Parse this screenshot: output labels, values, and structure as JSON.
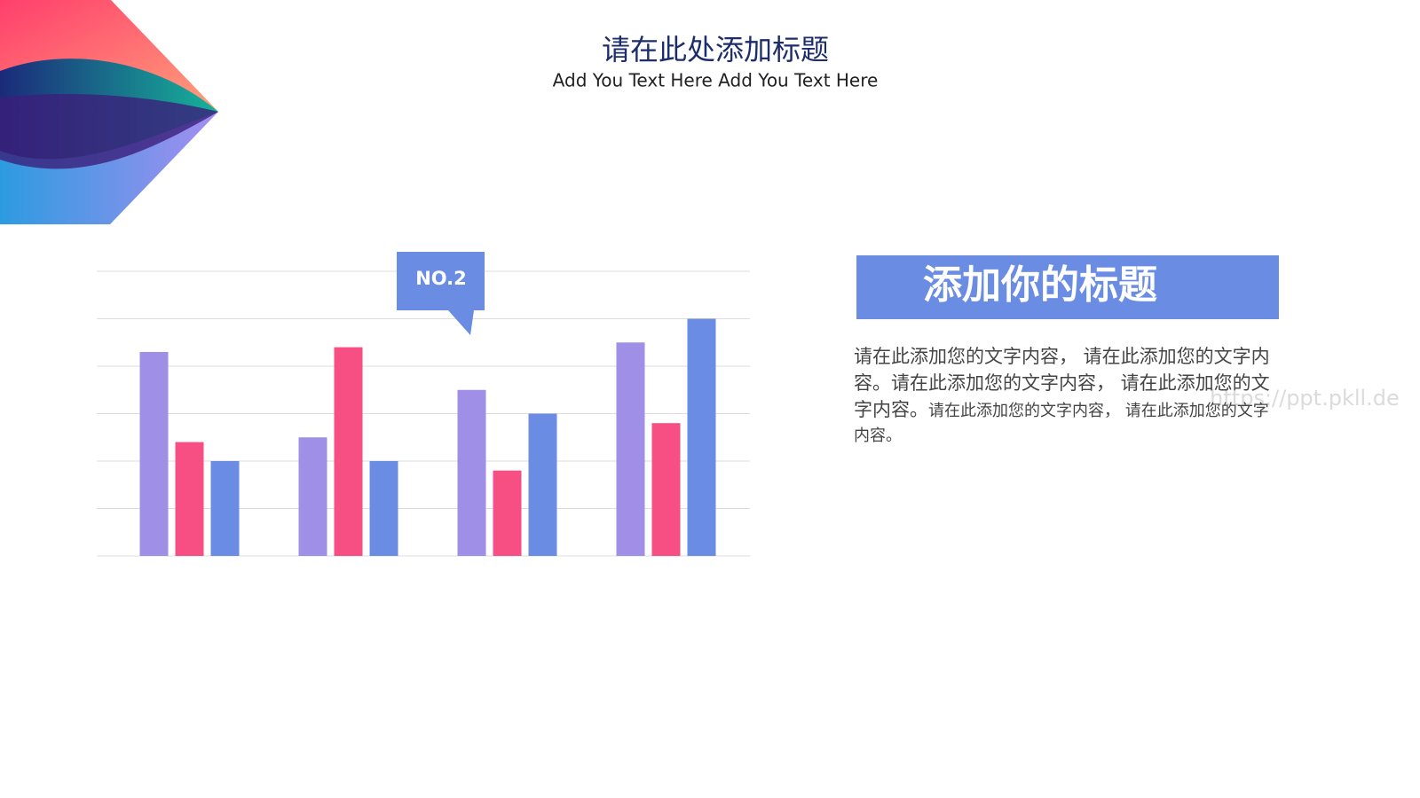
{
  "header": {
    "title": "请在此处添加标题",
    "subtitle": "Add You Text Here Add You Text Here"
  },
  "chart_data": {
    "type": "bar",
    "categories": [
      null,
      null,
      null,
      null
    ],
    "series": [
      {
        "color": "#9f8fe6",
        "values": [
          4.3,
          2.5,
          3.5,
          4.5
        ]
      },
      {
        "color": "#f74f84",
        "values": [
          2.4,
          4.4,
          1.8,
          2.8
        ]
      },
      {
        "color": "#6a8de3",
        "values": [
          2.0,
          2.0,
          3.0,
          5.0
        ]
      }
    ],
    "ylim": [
      0,
      6
    ],
    "yticks": [
      0,
      1,
      2,
      3,
      4,
      5,
      6
    ],
    "grid": true,
    "annotation": "NO.2"
  },
  "panel": {
    "title": "添加你的标题",
    "paragraph": [
      "请在此添加您的文字内容， 请在此添加您的文字内容。请在此添加您的文字内容， 请在此添加您的文字内容。",
      "请在此添加您的文字内容， 请在此添加您的文字内容。"
    ]
  },
  "watermark": "https://ppt.pkll.de"
}
